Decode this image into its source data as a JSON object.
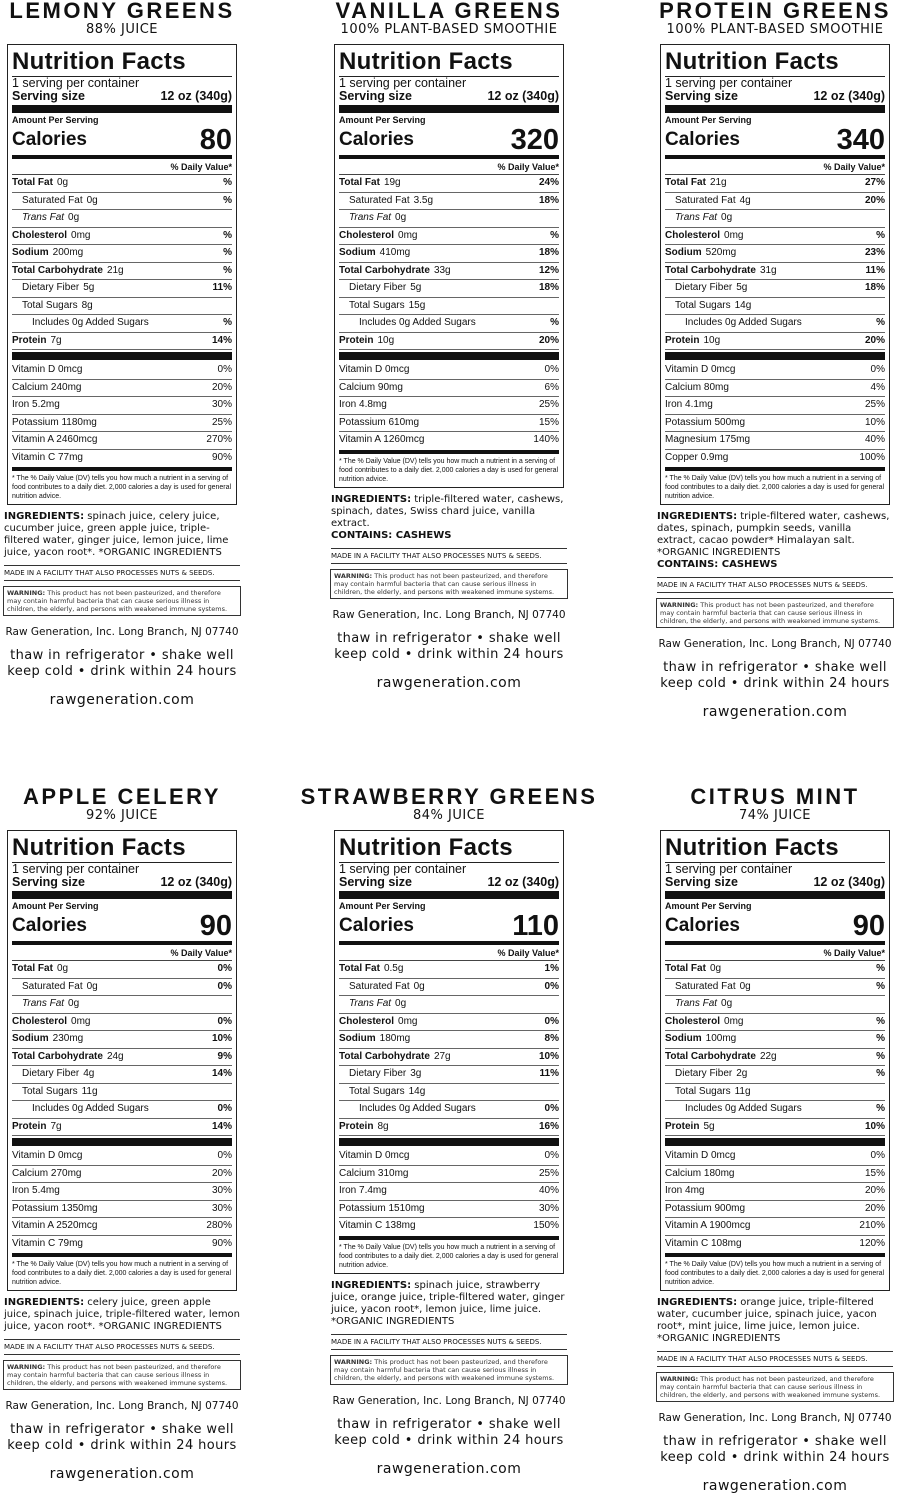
{
  "common": {
    "nutrition_facts": "Nutrition Facts",
    "servings": "1 serving per container",
    "serving_size": "Serving size",
    "serving_amount": "12 oz (340g)",
    "amount_per_serving": "Amount Per Serving",
    "calories": "Calories",
    "daily_value": "% Daily Value*",
    "footnote": "* The % Daily Value (DV) tells you how much a nutrient in a serving of food contributes to a daily diet. 2,000 calories a day is used for general nutrition advice.",
    "ingredients": "INGREDIENTS:",
    "facility": "MADE IN A FACILITY THAT ALSO PROCESSES NUTS & SEEDS.",
    "warning_label": "WARNING:",
    "warning": "This product has not been pasteurized, and therefore may contain harmful bacteria that can cause serious illness in children, the elderly, and persons with weakened immune systems.",
    "address": "Raw Generation, Inc. Long Branch, NJ 07740",
    "instructions": [
      "thaw in refrigerator  •  shake well",
      "keep cold  •  drink within 24 hours"
    ],
    "website": "rawgeneration.com"
  },
  "products": [
    {
      "name": "LEMONY GREENS",
      "subtitle": "88% JUICE",
      "calories": 80,
      "nutrients": [
        {
          "name": "Total Fat",
          "amount": "0g",
          "dv": "%",
          "level": 0
        },
        {
          "name": "Saturated Fat",
          "amount": "0g",
          "dv": "%",
          "level": 1
        },
        {
          "name": "Trans Fat",
          "amount": "0g",
          "level": 1,
          "italic": true
        },
        {
          "name": "Cholesterol",
          "amount": "0mg",
          "dv": "%",
          "level": 0
        },
        {
          "name": "Sodium",
          "amount": "200mg",
          "dv": "%",
          "level": 0
        },
        {
          "name": "Total Carbohydrate",
          "amount": "21g",
          "dv": "%",
          "level": 0
        },
        {
          "name": "Dietary Fiber",
          "amount": "5g",
          "dv": "11%",
          "level": 1
        },
        {
          "name": "Total Sugars",
          "amount": "8g",
          "level": 1
        },
        {
          "name": "Includes 0g Added Sugars",
          "dv": "%",
          "level": 2
        },
        {
          "name": "Protein",
          "amount": "7g",
          "dv": "14%",
          "level": 0
        }
      ],
      "vitamins": [
        {
          "name": "Vitamin D 0mcg",
          "dv": "0%"
        },
        {
          "name": "Calcium 240mg",
          "dv": "20%"
        },
        {
          "name": "Iron 5.2mg",
          "dv": "30%"
        },
        {
          "name": "Potassium 1180mg",
          "dv": "25%"
        },
        {
          "name": "Vitamin A 2460mcg",
          "dv": "270%"
        },
        {
          "name": "Vitamin C 77mg",
          "dv": "90%"
        }
      ],
      "ingredients": "spinach juice, celery juice, cucumber juice, green apple juice, triple-filtered water, ginger juice, lemon juice, lime juice, yacon root*. *ORGANIC INGREDIENTS"
    },
    {
      "name": "VANILLA GREENS",
      "subtitle": "100% PLANT-BASED SMOOTHIE",
      "calories": 320,
      "nutrients": [
        {
          "name": "Total Fat",
          "amount": "19g",
          "dv": "24%",
          "level": 0
        },
        {
          "name": "Saturated Fat",
          "amount": "3.5g",
          "dv": "18%",
          "level": 1
        },
        {
          "name": "Trans Fat",
          "amount": "0g",
          "level": 1,
          "italic": true
        },
        {
          "name": "Cholesterol",
          "amount": "0mg",
          "dv": "%",
          "level": 0
        },
        {
          "name": "Sodium",
          "amount": "410mg",
          "dv": "18%",
          "level": 0
        },
        {
          "name": "Total Carbohydrate",
          "amount": "33g",
          "dv": "12%",
          "level": 0
        },
        {
          "name": "Dietary Fiber",
          "amount": "5g",
          "dv": "18%",
          "level": 1
        },
        {
          "name": "Total Sugars",
          "amount": "15g",
          "level": 1
        },
        {
          "name": "Includes 0g Added Sugars",
          "dv": "%",
          "level": 2
        },
        {
          "name": "Protein",
          "amount": "10g",
          "dv": "20%",
          "level": 0
        }
      ],
      "vitamins": [
        {
          "name": "Vitamin D 0mcg",
          "dv": "0%"
        },
        {
          "name": "Calcium 90mg",
          "dv": "6%"
        },
        {
          "name": "Iron 4.8mg",
          "dv": "25%"
        },
        {
          "name": "Potassium 610mg",
          "dv": "15%"
        },
        {
          "name": "Vitamin A 1260mcg",
          "dv": "140%"
        }
      ],
      "ingredients": "triple-filtered water, cashews, spinach, dates, Swiss chard juice, vanilla extract.",
      "contains": "CONTAINS: CASHEWS"
    },
    {
      "name": "PROTEIN GREENS",
      "subtitle": "100% PLANT-BASED SMOOTHIE",
      "calories": 340,
      "nutrients": [
        {
          "name": "Total Fat",
          "amount": "21g",
          "dv": "27%",
          "level": 0
        },
        {
          "name": "Saturated Fat",
          "amount": "4g",
          "dv": "20%",
          "level": 1
        },
        {
          "name": "Trans Fat",
          "amount": "0g",
          "level": 1,
          "italic": true
        },
        {
          "name": "Cholesterol",
          "amount": "0mg",
          "dv": "%",
          "level": 0
        },
        {
          "name": "Sodium",
          "amount": "520mg",
          "dv": "23%",
          "level": 0
        },
        {
          "name": "Total Carbohydrate",
          "amount": "31g",
          "dv": "11%",
          "level": 0
        },
        {
          "name": "Dietary Fiber",
          "amount": "5g",
          "dv": "18%",
          "level": 1
        },
        {
          "name": "Total Sugars",
          "amount": "14g",
          "level": 1
        },
        {
          "name": "Includes 0g Added Sugars",
          "dv": "%",
          "level": 2
        },
        {
          "name": "Protein",
          "amount": "10g",
          "dv": "20%",
          "level": 0
        }
      ],
      "vitamins": [
        {
          "name": "Vitamin D 0mcg",
          "dv": "0%"
        },
        {
          "name": "Calcium 80mg",
          "dv": "4%"
        },
        {
          "name": "Iron 4.1mg",
          "dv": "25%"
        },
        {
          "name": "Potassium 500mg",
          "dv": "10%"
        },
        {
          "name": "Magnesium 175mg",
          "dv": "40%"
        },
        {
          "name": "Copper 0.9mg",
          "dv": "100%"
        }
      ],
      "ingredients": "triple-filtered water, cashews, dates, spinach, pumpkin seeds, vanilla extract, cacao powder* Himalayan salt. *ORGANIC INGREDIENTS",
      "contains": "CONTAINS: CASHEWS"
    },
    {
      "name": "APPLE CELERY",
      "subtitle": "92% JUICE",
      "calories": 90,
      "nutrients": [
        {
          "name": "Total Fat",
          "amount": "0g",
          "dv": "0%",
          "level": 0
        },
        {
          "name": "Saturated Fat",
          "amount": "0g",
          "dv": "0%",
          "level": 1
        },
        {
          "name": "Trans Fat",
          "amount": "0g",
          "level": 1,
          "italic": true
        },
        {
          "name": "Cholesterol",
          "amount": "0mg",
          "dv": "0%",
          "level": 0
        },
        {
          "name": "Sodium",
          "amount": "230mg",
          "dv": "10%",
          "level": 0
        },
        {
          "name": "Total Carbohydrate",
          "amount": "24g",
          "dv": "9%",
          "level": 0
        },
        {
          "name": "Dietary Fiber",
          "amount": "4g",
          "dv": "14%",
          "level": 1
        },
        {
          "name": "Total Sugars",
          "amount": "11g",
          "level": 1
        },
        {
          "name": "Includes 0g Added Sugars",
          "dv": "0%",
          "level": 2
        },
        {
          "name": "Protein",
          "amount": "7g",
          "dv": "14%",
          "level": 0
        }
      ],
      "vitamins": [
        {
          "name": "Vitamin D 0mcg",
          "dv": "0%"
        },
        {
          "name": "Calcium 270mg",
          "dv": "20%"
        },
        {
          "name": "Iron 5.4mg",
          "dv": "30%"
        },
        {
          "name": "Potassium 1350mg",
          "dv": "30%"
        },
        {
          "name": "Vitamin A 2520mcg",
          "dv": "280%"
        },
        {
          "name": "Vitamin C 79mg",
          "dv": "90%"
        }
      ],
      "ingredients": "celery juice, green apple juice, spinach juice, triple-filtered water, lemon juice, yacon root*. *ORGANIC INGREDIENTS"
    },
    {
      "name": "STRAWBERRY GREENS",
      "subtitle": "84% JUICE",
      "calories": 110,
      "nutrients": [
        {
          "name": "Total Fat",
          "amount": "0.5g",
          "dv": "1%",
          "level": 0
        },
        {
          "name": "Saturated Fat",
          "amount": "0g",
          "dv": "0%",
          "level": 1
        },
        {
          "name": "Trans Fat",
          "amount": "0g",
          "level": 1,
          "italic": true
        },
        {
          "name": "Cholesterol",
          "amount": "0mg",
          "dv": "0%",
          "level": 0
        },
        {
          "name": "Sodium",
          "amount": "180mg",
          "dv": "8%",
          "level": 0
        },
        {
          "name": "Total Carbohydrate",
          "amount": "27g",
          "dv": "10%",
          "level": 0
        },
        {
          "name": "Dietary Fiber",
          "amount": "3g",
          "dv": "11%",
          "level": 1
        },
        {
          "name": "Total Sugars",
          "amount": "14g",
          "level": 1
        },
        {
          "name": "Includes 0g Added Sugars",
          "dv": "0%",
          "level": 2
        },
        {
          "name": "Protein",
          "amount": "8g",
          "dv": "16%",
          "level": 0
        }
      ],
      "vitamins": [
        {
          "name": "Vitamin D 0mcg",
          "dv": "0%"
        },
        {
          "name": "Calcium 310mg",
          "dv": "25%"
        },
        {
          "name": "Iron 7.4mg",
          "dv": "40%"
        },
        {
          "name": "Potassium 1510mg",
          "dv": "30%"
        },
        {
          "name": "Vitamin C 138mg",
          "dv": "150%"
        }
      ],
      "ingredients": "spinach juice, strawberry juice, orange juice, triple-filtered water, ginger juice, yacon root*, lemon juice, lime juice. *ORGANIC INGREDIENTS"
    },
    {
      "name": "CITRUS MINT",
      "subtitle": "74% JUICE",
      "calories": 90,
      "nutrients": [
        {
          "name": "Total Fat",
          "amount": "0g",
          "dv": "%",
          "level": 0
        },
        {
          "name": "Saturated Fat",
          "amount": "0g",
          "dv": "%",
          "level": 1
        },
        {
          "name": "Trans Fat",
          "amount": "0g",
          "level": 1,
          "italic": true
        },
        {
          "name": "Cholesterol",
          "amount": "0mg",
          "dv": "%",
          "level": 0
        },
        {
          "name": "Sodium",
          "amount": "100mg",
          "dv": "%",
          "level": 0
        },
        {
          "name": "Total Carbohydrate",
          "amount": "22g",
          "dv": "%",
          "level": 0
        },
        {
          "name": "Dietary Fiber",
          "amount": "2g",
          "dv": "%",
          "level": 1
        },
        {
          "name": "Total Sugars",
          "amount": "11g",
          "level": 1
        },
        {
          "name": "Includes 0g Added Sugars",
          "dv": "%",
          "level": 2
        },
        {
          "name": "Protein",
          "amount": "5g",
          "dv": "10%",
          "level": 0
        }
      ],
      "vitamins": [
        {
          "name": "Vitamin D 0mcg",
          "dv": "0%"
        },
        {
          "name": "Calcium 180mg",
          "dv": "15%"
        },
        {
          "name": "Iron 4mg",
          "dv": "20%"
        },
        {
          "name": "Potassium 900mg",
          "dv": "20%"
        },
        {
          "name": "Vitamin A 1900mcg",
          "dv": "210%"
        },
        {
          "name": "Vitamin C 108mg",
          "dv": "120%"
        }
      ],
      "ingredients": "orange juice, triple-filtered water, cucumber juice, spinach juice, yacon root*, mint juice, lime juice, lemon juice. *ORGANIC INGREDIENTS"
    }
  ]
}
